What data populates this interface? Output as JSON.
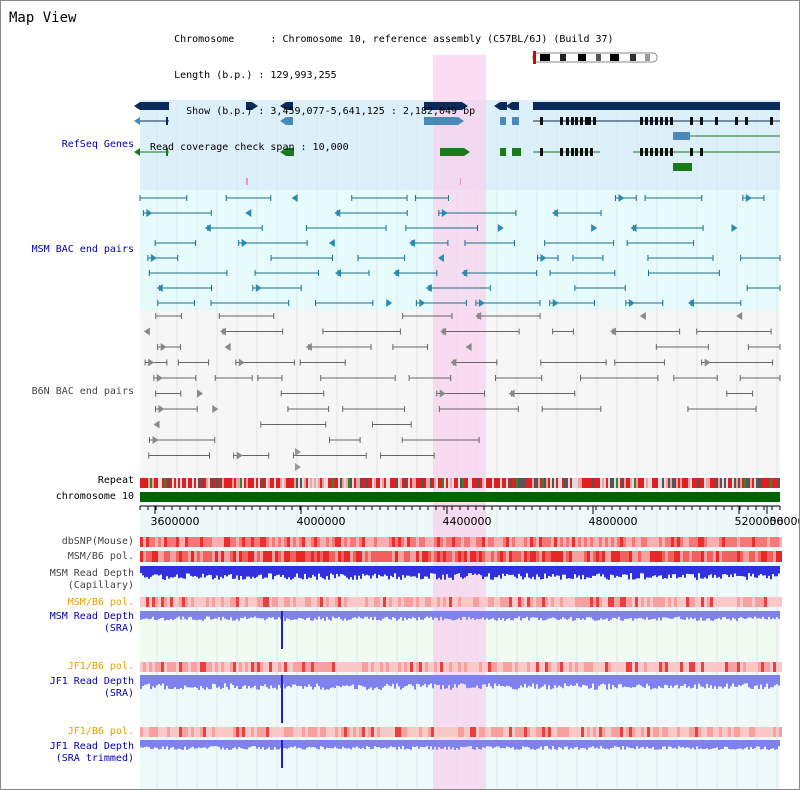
{
  "view_title": "Map View",
  "info_lines": [
    "    Chromosome      : Chromosome 10, reference assembly (C57BL/6J) (Build 37)",
    "    Length (b.p.) : 129,993,255",
    "      Show (b.p.) : 3,459,077-5,641,125 : 2,182,049 bp",
    "Read coverage check span : 10,000"
  ],
  "tracks": {
    "refseq": "RefSeq Genes",
    "msm_bac": "MSM BAC end pairs",
    "b6n_bac": "B6N BAC end pairs",
    "repeat": "Repeat",
    "chromosome": "chromosome 10",
    "dbsnp": "dbSNP(Mouse)",
    "msm_b6_pol": "MSM/B6 pol.",
    "msm_read_depth_cap_1": "MSM Read Depth",
    "msm_read_depth_cap_2": "(Capillary)",
    "msm_b6_pol_2": "MSM/B6 pol.",
    "msm_read_depth_sra_1": "MSM Read Depth",
    "msm_read_depth_sra_2": "(SRA)",
    "jf1_b6_pol": "JF1/B6 pol.",
    "jf1_read_depth_sra_1": "JF1 Read Depth",
    "jf1_read_depth_sra_2": "(SRA)",
    "jf1_b6_pol_2": "JF1/B6 pol.",
    "jf1_read_depth_trim_1": "JF1 Read Depth",
    "jf1_read_depth_trim_2": "(SRA trimmed)"
  },
  "axis_ticks": [
    "3600000",
    "4000000",
    "4400000",
    "4800000",
    "5200000",
    "56000"
  ],
  "colors": {
    "refseq_bg": "#dcf0fa",
    "msm_bg": "#e6fbfc",
    "b6n_bg": "#f6f6f6",
    "highlight": "#f8d2ee",
    "gene_dark": "#0a2a5a",
    "gene_mid": "#4a8ab8",
    "gene_green": "#1a7a1a",
    "bac_teal": "#1a6f8a",
    "bac_gray": "#666666",
    "chromosome_green": "#006400",
    "depth_blue": "#3030dd",
    "depth_light": "#8080f0"
  }
}
